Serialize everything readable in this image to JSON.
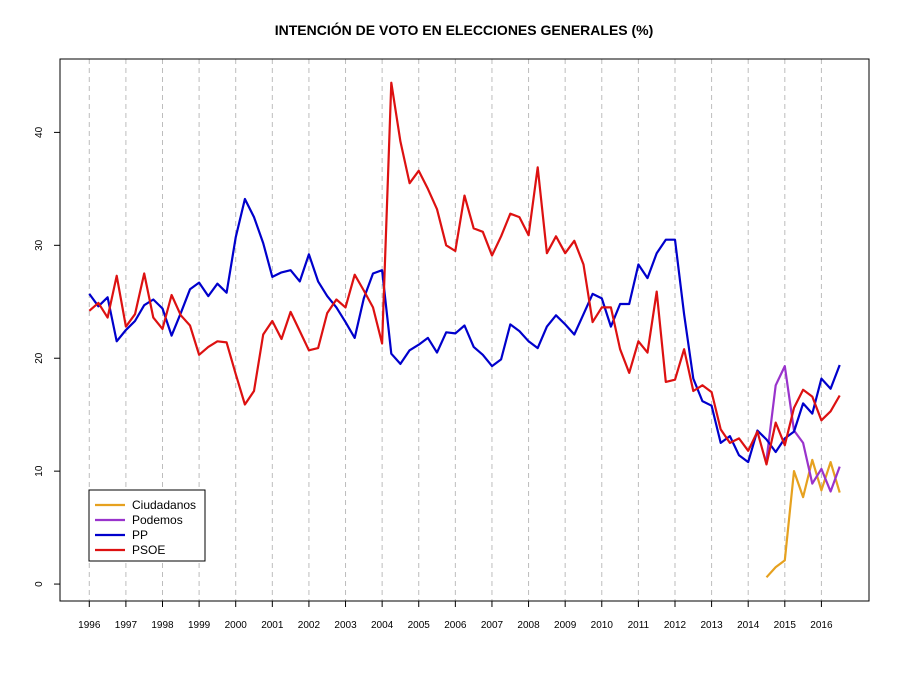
{
  "chart_data": {
    "type": "line",
    "title": "INTENCIÓN DE VOTO EN ELECCIONES GENERALES (%)",
    "xlabel": "",
    "ylabel": "",
    "xlim": [
      1995.2,
      2017.3
    ],
    "ylim": [
      -1.5,
      46.5
    ],
    "grid": "vertical dashed at each year",
    "legend_position": "bottom-left",
    "x_ticks": [
      1996,
      1997,
      1998,
      1999,
      2000,
      2001,
      2002,
      2003,
      2004,
      2005,
      2006,
      2007,
      2008,
      2009,
      2010,
      2011,
      2012,
      2013,
      2014,
      2015,
      2016
    ],
    "x_tick_labels": [
      "1996",
      "1997",
      "1998",
      "1999",
      "2000",
      "2001",
      "2002",
      "2003",
      "2004",
      "2005",
      "2006",
      "2007",
      "2008",
      "2009",
      "2010",
      "2011",
      "2012",
      "2013",
      "2014",
      "2015",
      "2016"
    ],
    "y_ticks": [
      0,
      10,
      20,
      30,
      40
    ],
    "y_tick_labels": [
      "0",
      "10",
      "20",
      "30",
      "40"
    ],
    "series": [
      {
        "name": "Ciudadanos",
        "color": "#E6A11F",
        "points": [
          [
            2014.5,
            0.6
          ],
          [
            2014.75,
            1.5
          ],
          [
            2015.0,
            2.1
          ],
          [
            2015.25,
            10.0
          ],
          [
            2015.5,
            7.7
          ],
          [
            2015.75,
            11.0
          ],
          [
            2016.0,
            8.3
          ],
          [
            2016.25,
            10.8
          ],
          [
            2016.5,
            8.1
          ]
        ]
      },
      {
        "name": "Podemos",
        "color": "#9933CC",
        "points": [
          [
            2014.5,
            11.0
          ],
          [
            2014.75,
            17.6
          ],
          [
            2015.0,
            19.3
          ],
          [
            2015.25,
            13.6
          ],
          [
            2015.5,
            12.5
          ],
          [
            2015.75,
            8.9
          ],
          [
            2016.0,
            10.2
          ],
          [
            2016.25,
            8.2
          ],
          [
            2016.5,
            10.4
          ]
        ]
      },
      {
        "name": "PP",
        "color": "#0000CC",
        "points": [
          [
            1996.0,
            25.7
          ],
          [
            1996.25,
            24.6
          ],
          [
            1996.5,
            25.4
          ],
          [
            1996.75,
            21.5
          ],
          [
            1997.0,
            22.5
          ],
          [
            1997.25,
            23.3
          ],
          [
            1997.5,
            24.7
          ],
          [
            1997.75,
            25.2
          ],
          [
            1998.0,
            24.4
          ],
          [
            1998.25,
            22.0
          ],
          [
            1998.5,
            24.0
          ],
          [
            1998.75,
            26.1
          ],
          [
            1999.0,
            26.7
          ],
          [
            1999.25,
            25.5
          ],
          [
            1999.5,
            26.6
          ],
          [
            1999.75,
            25.8
          ],
          [
            2000.0,
            30.7
          ],
          [
            2000.25,
            34.1
          ],
          [
            2000.5,
            32.5
          ],
          [
            2000.75,
            30.2
          ],
          [
            2001.0,
            27.2
          ],
          [
            2001.25,
            27.6
          ],
          [
            2001.5,
            27.8
          ],
          [
            2001.75,
            26.8
          ],
          [
            2002.0,
            29.2
          ],
          [
            2002.25,
            26.8
          ],
          [
            2002.5,
            25.5
          ],
          [
            2002.75,
            24.5
          ],
          [
            2003.0,
            23.2
          ],
          [
            2003.25,
            21.8
          ],
          [
            2003.5,
            25.3
          ],
          [
            2003.75,
            27.5
          ],
          [
            2004.0,
            27.8
          ],
          [
            2004.25,
            20.4
          ],
          [
            2004.5,
            19.5
          ],
          [
            2004.75,
            20.7
          ],
          [
            2005.0,
            21.2
          ],
          [
            2005.25,
            21.8
          ],
          [
            2005.5,
            20.5
          ],
          [
            2005.75,
            22.3
          ],
          [
            2006.0,
            22.2
          ],
          [
            2006.25,
            22.9
          ],
          [
            2006.5,
            21.0
          ],
          [
            2006.75,
            20.3
          ],
          [
            2007.0,
            19.3
          ],
          [
            2007.25,
            19.9
          ],
          [
            2007.5,
            23.0
          ],
          [
            2007.75,
            22.4
          ],
          [
            2008.0,
            21.5
          ],
          [
            2008.25,
            20.9
          ],
          [
            2008.5,
            22.8
          ],
          [
            2008.75,
            23.8
          ],
          [
            2009.0,
            23.0
          ],
          [
            2009.25,
            22.1
          ],
          [
            2009.5,
            23.9
          ],
          [
            2009.75,
            25.7
          ],
          [
            2010.0,
            25.3
          ],
          [
            2010.25,
            22.8
          ],
          [
            2010.5,
            24.8
          ],
          [
            2010.75,
            24.8
          ],
          [
            2011.0,
            28.3
          ],
          [
            2011.25,
            27.1
          ],
          [
            2011.5,
            29.3
          ],
          [
            2011.75,
            30.5
          ],
          [
            2012.0,
            30.5
          ],
          [
            2012.25,
            23.9
          ],
          [
            2012.5,
            18.2
          ],
          [
            2012.75,
            16.2
          ],
          [
            2013.0,
            15.8
          ],
          [
            2013.25,
            12.5
          ],
          [
            2013.5,
            13.1
          ],
          [
            2013.75,
            11.4
          ],
          [
            2014.0,
            10.8
          ],
          [
            2014.25,
            13.6
          ],
          [
            2014.5,
            12.8
          ],
          [
            2014.75,
            11.7
          ],
          [
            2015.0,
            12.9
          ],
          [
            2015.25,
            13.5
          ],
          [
            2015.5,
            16.0
          ],
          [
            2015.75,
            15.1
          ],
          [
            2016.0,
            18.2
          ],
          [
            2016.25,
            17.3
          ],
          [
            2016.5,
            19.4
          ]
        ]
      },
      {
        "name": "PSOE",
        "color": "#DD1111",
        "points": [
          [
            1996.0,
            24.2
          ],
          [
            1996.25,
            24.9
          ],
          [
            1996.5,
            23.6
          ],
          [
            1996.75,
            27.3
          ],
          [
            1997.0,
            22.8
          ],
          [
            1997.25,
            23.9
          ],
          [
            1997.5,
            27.5
          ],
          [
            1997.75,
            23.6
          ],
          [
            1998.0,
            22.6
          ],
          [
            1998.25,
            25.6
          ],
          [
            1998.5,
            23.8
          ],
          [
            1998.75,
            22.9
          ],
          [
            1999.0,
            20.3
          ],
          [
            1999.25,
            21.0
          ],
          [
            1999.5,
            21.5
          ],
          [
            1999.75,
            21.4
          ],
          [
            2000.0,
            18.6
          ],
          [
            2000.25,
            15.9
          ],
          [
            2000.5,
            17.1
          ],
          [
            2000.75,
            22.1
          ],
          [
            2001.0,
            23.3
          ],
          [
            2001.25,
            21.7
          ],
          [
            2001.5,
            24.1
          ],
          [
            2001.75,
            22.4
          ],
          [
            2002.0,
            20.7
          ],
          [
            2002.25,
            20.9
          ],
          [
            2002.5,
            24.0
          ],
          [
            2002.75,
            25.2
          ],
          [
            2003.0,
            24.5
          ],
          [
            2003.25,
            27.4
          ],
          [
            2003.5,
            26.0
          ],
          [
            2003.75,
            24.5
          ],
          [
            2004.0,
            21.3
          ],
          [
            2004.25,
            44.4
          ],
          [
            2004.5,
            39.2
          ],
          [
            2004.75,
            35.5
          ],
          [
            2005.0,
            36.6
          ],
          [
            2005.25,
            35.0
          ],
          [
            2005.5,
            33.2
          ],
          [
            2005.75,
            30.0
          ],
          [
            2006.0,
            29.5
          ],
          [
            2006.25,
            34.4
          ],
          [
            2006.5,
            31.5
          ],
          [
            2006.75,
            31.2
          ],
          [
            2007.0,
            29.1
          ],
          [
            2007.25,
            30.8
          ],
          [
            2007.5,
            32.8
          ],
          [
            2007.75,
            32.5
          ],
          [
            2008.0,
            30.9
          ],
          [
            2008.25,
            36.9
          ],
          [
            2008.5,
            29.3
          ],
          [
            2008.75,
            30.8
          ],
          [
            2009.0,
            29.3
          ],
          [
            2009.25,
            30.4
          ],
          [
            2009.5,
            28.3
          ],
          [
            2009.75,
            23.2
          ],
          [
            2010.0,
            24.5
          ],
          [
            2010.25,
            24.5
          ],
          [
            2010.5,
            20.8
          ],
          [
            2010.75,
            18.7
          ],
          [
            2011.0,
            21.5
          ],
          [
            2011.25,
            20.5
          ],
          [
            2011.5,
            25.9
          ],
          [
            2011.75,
            17.9
          ],
          [
            2012.0,
            18.1
          ],
          [
            2012.25,
            20.8
          ],
          [
            2012.5,
            17.1
          ],
          [
            2012.75,
            17.6
          ],
          [
            2013.0,
            17.0
          ],
          [
            2013.25,
            13.7
          ],
          [
            2013.5,
            12.5
          ],
          [
            2013.75,
            12.9
          ],
          [
            2014.0,
            11.8
          ],
          [
            2014.25,
            13.5
          ],
          [
            2014.5,
            10.6
          ],
          [
            2014.75,
            14.3
          ],
          [
            2015.0,
            12.3
          ],
          [
            2015.25,
            15.6
          ],
          [
            2015.5,
            17.2
          ],
          [
            2015.75,
            16.6
          ],
          [
            2016.0,
            14.5
          ],
          [
            2016.25,
            15.3
          ],
          [
            2016.5,
            16.7
          ]
        ]
      }
    ]
  }
}
